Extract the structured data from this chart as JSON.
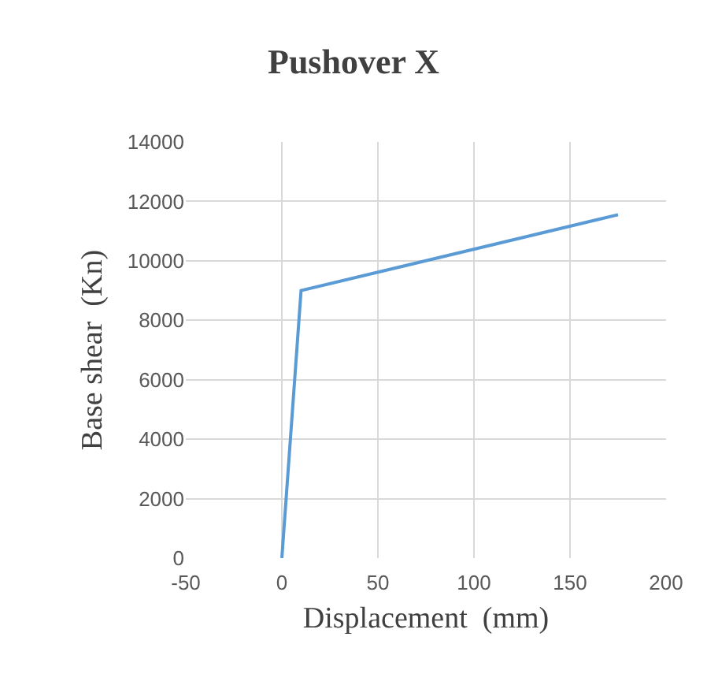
{
  "chart_data": {
    "type": "line",
    "title": "Pushover X",
    "xlabel": "Displacement  (mm)",
    "ylabel": "Base shear  (Kn)",
    "x": [
      0,
      10,
      175
    ],
    "series": [
      {
        "color": "#5b9bd5",
        "values": [
          0,
          9000,
          11550
        ]
      }
    ],
    "xlim": [
      -50,
      200
    ],
    "xticks": [
      -50,
      0,
      50,
      100,
      150,
      200
    ],
    "ylim": [
      0,
      14000
    ],
    "yticks": [
      0,
      2000,
      4000,
      6000,
      8000,
      10000,
      12000,
      14000
    ],
    "grid": true,
    "marker": "none",
    "line_style": "solid"
  }
}
